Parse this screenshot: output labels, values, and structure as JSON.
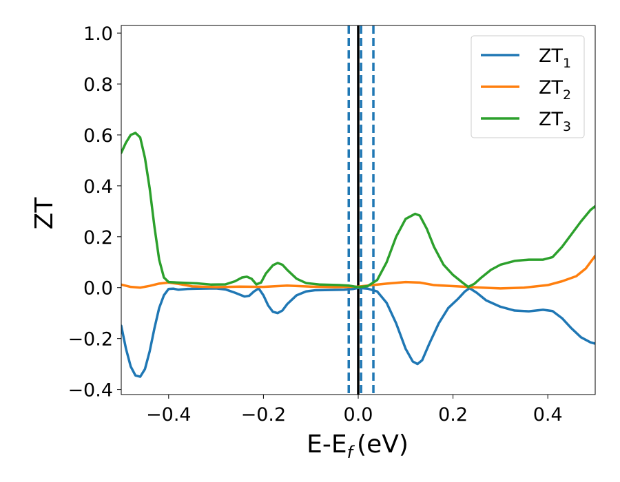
{
  "chart_data": {
    "type": "line",
    "xlabel": "E-E",
    "xlabel_sub": "f",
    "xlabel_unit": "(eV)",
    "ylabel": "ZT",
    "xlim": [
      -0.5,
      0.5
    ],
    "ylim": [
      -0.42,
      1.03
    ],
    "xticks": [
      -0.4,
      -0.2,
      0.0,
      0.2,
      0.4
    ],
    "xtick_labels": [
      "−0.4",
      "−0.2",
      "0.0",
      "0.2",
      "0.4"
    ],
    "yticks": [
      -0.4,
      -0.2,
      0.0,
      0.2,
      0.4,
      0.6,
      0.8,
      1.0
    ],
    "ytick_labels": [
      "−0.4",
      "−0.2",
      "0.0",
      "0.2",
      "0.4",
      "0.6",
      "0.8",
      "1.0"
    ],
    "grid": false,
    "legend_position": "top-right",
    "vlines": [
      {
        "x": 0.0,
        "style": "solid",
        "color": "#000000"
      },
      {
        "x": -0.02,
        "style": "dashed",
        "color": "#1f77b4"
      },
      {
        "x": 0.006,
        "style": "dashed",
        "color": "#1f77b4"
      },
      {
        "x": 0.032,
        "style": "dashed",
        "color": "#1f77b4"
      }
    ],
    "series": [
      {
        "name": "ZT",
        "sub": "1",
        "color": "#1f77b4",
        "points": [
          [
            -0.5,
            -0.15
          ],
          [
            -0.49,
            -0.24
          ],
          [
            -0.48,
            -0.31
          ],
          [
            -0.47,
            -0.345
          ],
          [
            -0.46,
            -0.35
          ],
          [
            -0.45,
            -0.32
          ],
          [
            -0.44,
            -0.25
          ],
          [
            -0.43,
            -0.16
          ],
          [
            -0.42,
            -0.08
          ],
          [
            -0.41,
            -0.03
          ],
          [
            -0.4,
            -0.005
          ],
          [
            -0.39,
            -0.004
          ],
          [
            -0.38,
            -0.008
          ],
          [
            -0.36,
            -0.005
          ],
          [
            -0.34,
            -0.004
          ],
          [
            -0.3,
            -0.003
          ],
          [
            -0.28,
            -0.007
          ],
          [
            -0.26,
            -0.02
          ],
          [
            -0.24,
            -0.035
          ],
          [
            -0.23,
            -0.032
          ],
          [
            -0.22,
            -0.015
          ],
          [
            -0.21,
            -0.003
          ],
          [
            -0.2,
            -0.03
          ],
          [
            -0.19,
            -0.07
          ],
          [
            -0.18,
            -0.095
          ],
          [
            -0.17,
            -0.1
          ],
          [
            -0.16,
            -0.09
          ],
          [
            -0.15,
            -0.065
          ],
          [
            -0.13,
            -0.03
          ],
          [
            -0.11,
            -0.015
          ],
          [
            -0.09,
            -0.01
          ],
          [
            -0.06,
            -0.009
          ],
          [
            -0.03,
            -0.008
          ],
          [
            -0.01,
            -0.005
          ],
          [
            0.0,
            -0.001
          ],
          [
            0.02,
            -0.004
          ],
          [
            0.04,
            -0.015
          ],
          [
            0.06,
            -0.06
          ],
          [
            0.08,
            -0.14
          ],
          [
            0.1,
            -0.24
          ],
          [
            0.115,
            -0.29
          ],
          [
            0.125,
            -0.3
          ],
          [
            0.135,
            -0.285
          ],
          [
            0.15,
            -0.22
          ],
          [
            0.17,
            -0.14
          ],
          [
            0.19,
            -0.08
          ],
          [
            0.21,
            -0.045
          ],
          [
            0.225,
            -0.015
          ],
          [
            0.235,
            -0.002
          ],
          [
            0.25,
            -0.02
          ],
          [
            0.27,
            -0.05
          ],
          [
            0.3,
            -0.075
          ],
          [
            0.33,
            -0.09
          ],
          [
            0.36,
            -0.093
          ],
          [
            0.39,
            -0.087
          ],
          [
            0.41,
            -0.092
          ],
          [
            0.43,
            -0.12
          ],
          [
            0.45,
            -0.16
          ],
          [
            0.47,
            -0.195
          ],
          [
            0.49,
            -0.215
          ],
          [
            0.5,
            -0.22
          ]
        ]
      },
      {
        "name": "ZT",
        "sub": "2",
        "color": "#ff7f0e",
        "points": [
          [
            -0.5,
            0.012
          ],
          [
            -0.48,
            0.003
          ],
          [
            -0.46,
            0.0
          ],
          [
            -0.44,
            0.007
          ],
          [
            -0.42,
            0.016
          ],
          [
            -0.4,
            0.02
          ],
          [
            -0.38,
            0.015
          ],
          [
            -0.35,
            0.005
          ],
          [
            -0.3,
            0.002
          ],
          [
            -0.25,
            0.004
          ],
          [
            -0.2,
            0.003
          ],
          [
            -0.15,
            0.008
          ],
          [
            -0.1,
            0.004
          ],
          [
            -0.05,
            0.002
          ],
          [
            0.0,
            0.004
          ],
          [
            0.03,
            0.01
          ],
          [
            0.06,
            0.016
          ],
          [
            0.1,
            0.022
          ],
          [
            0.13,
            0.02
          ],
          [
            0.16,
            0.01
          ],
          [
            0.2,
            0.006
          ],
          [
            0.25,
            0.001
          ],
          [
            0.3,
            -0.003
          ],
          [
            0.35,
            0.0
          ],
          [
            0.4,
            0.01
          ],
          [
            0.43,
            0.025
          ],
          [
            0.46,
            0.045
          ],
          [
            0.48,
            0.075
          ],
          [
            0.5,
            0.125
          ]
        ]
      },
      {
        "name": "ZT",
        "sub": "3",
        "color": "#2ca02c",
        "points": [
          [
            -0.5,
            0.53
          ],
          [
            -0.49,
            0.57
          ],
          [
            -0.48,
            0.6
          ],
          [
            -0.47,
            0.608
          ],
          [
            -0.46,
            0.59
          ],
          [
            -0.45,
            0.51
          ],
          [
            -0.44,
            0.39
          ],
          [
            -0.43,
            0.24
          ],
          [
            -0.42,
            0.11
          ],
          [
            -0.41,
            0.04
          ],
          [
            -0.4,
            0.022
          ],
          [
            -0.38,
            0.02
          ],
          [
            -0.34,
            0.017
          ],
          [
            -0.31,
            0.012
          ],
          [
            -0.28,
            0.013
          ],
          [
            -0.26,
            0.025
          ],
          [
            -0.245,
            0.04
          ],
          [
            -0.235,
            0.043
          ],
          [
            -0.225,
            0.035
          ],
          [
            -0.215,
            0.013
          ],
          [
            -0.205,
            0.02
          ],
          [
            -0.195,
            0.055
          ],
          [
            -0.18,
            0.088
          ],
          [
            -0.17,
            0.097
          ],
          [
            -0.16,
            0.09
          ],
          [
            -0.15,
            0.07
          ],
          [
            -0.13,
            0.035
          ],
          [
            -0.11,
            0.018
          ],
          [
            -0.08,
            0.012
          ],
          [
            -0.04,
            0.01
          ],
          [
            -0.02,
            0.008
          ],
          [
            0.0,
            0.002
          ],
          [
            0.02,
            0.006
          ],
          [
            0.04,
            0.03
          ],
          [
            0.06,
            0.1
          ],
          [
            0.08,
            0.2
          ],
          [
            0.1,
            0.27
          ],
          [
            0.12,
            0.29
          ],
          [
            0.13,
            0.283
          ],
          [
            0.145,
            0.23
          ],
          [
            0.16,
            0.16
          ],
          [
            0.18,
            0.09
          ],
          [
            0.2,
            0.05
          ],
          [
            0.22,
            0.02
          ],
          [
            0.232,
            0.003
          ],
          [
            0.245,
            0.015
          ],
          [
            0.26,
            0.04
          ],
          [
            0.28,
            0.07
          ],
          [
            0.3,
            0.09
          ],
          [
            0.33,
            0.105
          ],
          [
            0.36,
            0.11
          ],
          [
            0.39,
            0.11
          ],
          [
            0.41,
            0.12
          ],
          [
            0.43,
            0.16
          ],
          [
            0.45,
            0.21
          ],
          [
            0.47,
            0.26
          ],
          [
            0.49,
            0.305
          ],
          [
            0.5,
            0.32
          ]
        ]
      }
    ]
  }
}
